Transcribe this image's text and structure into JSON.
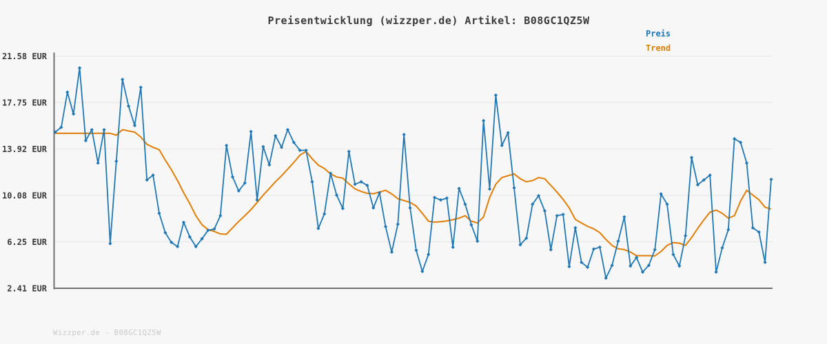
{
  "title": "Preisentwicklung (wizzper.de) Artikel: B08GC1QZ5W",
  "watermark": "Wizzper.de - B08GC1QZ5W",
  "legend": [
    {
      "label": "Preis",
      "color": "#1f77b4"
    },
    {
      "label": "Trend",
      "color": "#d9800a"
    }
  ],
  "colors": {
    "background": "#f7f7f7",
    "title_text": "#3a3a3a",
    "tick_text": "#3a3a3a",
    "grid": "#e6e6e6",
    "axis": "#6e6e6e",
    "price_line": "#1f77b4",
    "trend_line": "#e07d05",
    "watermark_text": "#c9c9c9"
  },
  "chart_data": {
    "type": "line",
    "title": "Preisentwicklung (wizzper.de) Artikel: B08GC1QZ5W",
    "xlabel": "",
    "ylabel": "",
    "x_axis_labels_visible": false,
    "grid": true,
    "legend_position": "top-right",
    "ylim": [
      2.41,
      21.58
    ],
    "ytick_labels": [
      "21.58 EUR",
      "17.75 EUR",
      "13.92 EUR",
      "10.08 EUR",
      "6.25 EUR",
      "2.41 EUR"
    ],
    "ytick_values": [
      21.58,
      17.75,
      13.92,
      10.08,
      6.25,
      2.41
    ],
    "unit": "EUR",
    "n_points": 118,
    "series": [
      {
        "name": "Preis",
        "color": "#1f77b4",
        "marker": "diamond",
        "values": [
          15.3,
          15.7,
          18.6,
          16.8,
          20.6,
          14.6,
          15.5,
          12.75,
          15.5,
          6.1,
          12.9,
          19.65,
          17.45,
          15.85,
          19.0,
          11.35,
          11.75,
          8.6,
          7.0,
          6.2,
          5.85,
          7.85,
          6.65,
          5.85,
          6.5,
          7.2,
          7.3,
          8.4,
          14.2,
          11.6,
          10.45,
          11.1,
          15.35,
          9.7,
          14.1,
          12.6,
          15.0,
          14.05,
          15.5,
          14.45,
          13.8,
          13.8,
          11.2,
          7.35,
          8.55,
          11.9,
          10.1,
          9.0,
          13.7,
          11.0,
          11.2,
          10.9,
          9.05,
          10.3,
          7.5,
          5.4,
          7.7,
          15.1,
          9.05,
          5.55,
          3.8,
          5.2,
          9.9,
          9.7,
          9.85,
          5.8,
          10.65,
          9.35,
          7.65,
          6.3,
          16.25,
          10.6,
          18.35,
          14.2,
          15.25,
          10.7,
          6.0,
          6.55,
          9.35,
          10.05,
          8.8,
          5.6,
          8.4,
          8.5,
          4.2,
          7.4,
          4.55,
          4.15,
          5.65,
          5.8,
          3.25,
          4.3,
          6.3,
          8.3,
          4.25,
          4.95,
          3.75,
          4.3,
          5.6,
          10.2,
          9.35,
          5.2,
          4.25,
          6.75,
          13.2,
          10.95,
          11.35,
          11.75,
          3.75,
          5.75,
          7.25,
          14.75,
          14.45,
          12.75,
          7.4,
          7.05,
          4.55,
          11.4
        ]
      },
      {
        "name": "Trend",
        "color": "#e07d05",
        "marker": "none",
        "values": [
          15.2,
          15.2,
          15.2,
          15.2,
          15.2,
          15.2,
          15.2,
          15.2,
          15.2,
          15.2,
          15.05,
          15.5,
          15.4,
          15.3,
          14.9,
          14.3,
          14.05,
          13.85,
          13.0,
          12.2,
          11.3,
          10.3,
          9.4,
          8.4,
          7.65,
          7.25,
          7.1,
          6.9,
          6.87,
          7.4,
          7.93,
          8.4,
          8.9,
          9.5,
          10.1,
          10.65,
          11.2,
          11.7,
          12.25,
          12.8,
          13.4,
          13.7,
          13.1,
          12.58,
          12.3,
          11.85,
          11.6,
          11.5,
          11.03,
          10.62,
          10.4,
          10.25,
          10.22,
          10.35,
          10.5,
          10.2,
          9.8,
          9.65,
          9.5,
          9.2,
          8.6,
          7.95,
          7.87,
          7.9,
          7.97,
          8.07,
          8.2,
          8.4,
          7.95,
          7.8,
          8.3,
          9.9,
          11.0,
          11.55,
          11.7,
          11.85,
          11.45,
          11.2,
          11.3,
          11.55,
          11.45,
          10.9,
          10.35,
          9.75,
          9.05,
          8.1,
          7.8,
          7.52,
          7.32,
          7.0,
          6.45,
          5.95,
          5.67,
          5.6,
          5.4,
          5.1,
          5.1,
          5.1,
          5.08,
          5.45,
          5.95,
          6.18,
          6.13,
          5.95,
          6.6,
          7.35,
          8.05,
          8.7,
          8.86,
          8.6,
          8.2,
          8.4,
          9.6,
          10.5,
          10.1,
          9.72,
          9.1,
          8.95
        ]
      }
    ]
  }
}
